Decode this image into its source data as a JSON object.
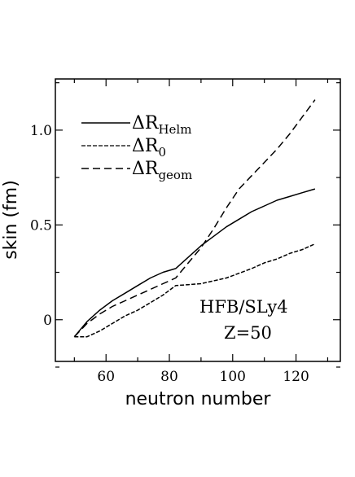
{
  "chart_data": {
    "type": "line",
    "xlabel": "neutron number",
    "ylabel": "skin (fm)",
    "xlim": [
      44,
      134
    ],
    "ylim": [
      -0.22,
      1.27
    ],
    "x_ticks": [
      60,
      80,
      100,
      120
    ],
    "y_ticks": [
      0,
      0.5,
      1.0
    ],
    "y_tick_labels": [
      "0",
      "0.5",
      "1.0"
    ],
    "grid": false,
    "legend_position": "top-left",
    "annotations": [
      "HFB/SLy4",
      "Z=50"
    ],
    "series": [
      {
        "name": "ΔR",
        "subscript": "Helm",
        "style": "solid",
        "x": [
          50,
          54,
          58,
          62,
          66,
          70,
          74,
          78,
          82,
          86,
          90,
          94,
          98,
          102,
          106,
          110,
          114,
          118,
          122,
          126
        ],
        "y": [
          -0.09,
          -0.01,
          0.05,
          0.1,
          0.14,
          0.18,
          0.22,
          0.25,
          0.27,
          0.33,
          0.39,
          0.44,
          0.49,
          0.53,
          0.57,
          0.6,
          0.63,
          0.65,
          0.67,
          0.69
        ]
      },
      {
        "name": "ΔR",
        "subscript": "0",
        "style": "dash-short",
        "x": [
          50,
          54,
          58,
          62,
          66,
          70,
          74,
          78,
          82,
          86,
          90,
          94,
          98,
          102,
          106,
          110,
          114,
          118,
          122,
          126
        ],
        "y": [
          -0.09,
          -0.09,
          -0.06,
          -0.02,
          0.02,
          0.05,
          0.09,
          0.13,
          0.18,
          0.185,
          0.19,
          0.205,
          0.22,
          0.245,
          0.27,
          0.3,
          0.32,
          0.35,
          0.37,
          0.4
        ]
      },
      {
        "name": "ΔR",
        "subscript": "geom",
        "style": "dash-long",
        "x": [
          50,
          54,
          58,
          62,
          66,
          70,
          74,
          78,
          82,
          86,
          90,
          94,
          98,
          102,
          106,
          110,
          114,
          118,
          122,
          126
        ],
        "y": [
          -0.09,
          -0.02,
          0.03,
          0.07,
          0.1,
          0.13,
          0.16,
          0.19,
          0.22,
          0.3,
          0.38,
          0.48,
          0.59,
          0.69,
          0.76,
          0.83,
          0.9,
          0.98,
          1.07,
          1.16
        ]
      }
    ]
  }
}
